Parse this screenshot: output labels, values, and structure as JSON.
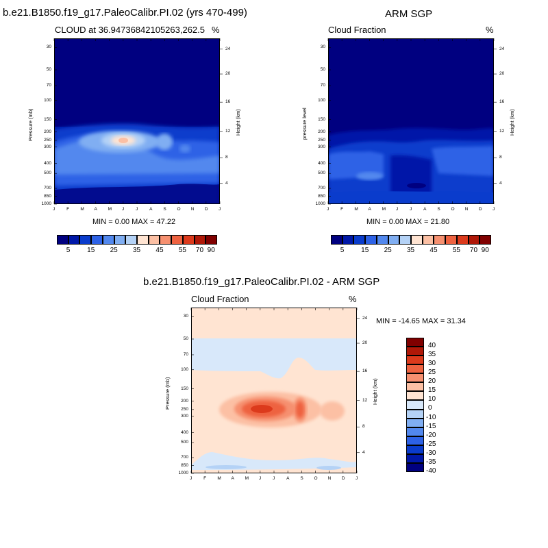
{
  "header": {
    "title_left": "b.e21.B1850.f19_g17.PaleoCalibr.PI.02 (yrs 470-499)",
    "title_right": "ARM SGP",
    "title_bottom": "b.e21.B1850.f19_g17.PaleoCalibr.PI.02 - ARM SGP"
  },
  "colors": {
    "blue_scale": [
      "#000080",
      "#0018a8",
      "#0a3ccc",
      "#2d62e6",
      "#5288ee",
      "#80aef2",
      "#b4d2f6",
      "#ffe4d2",
      "#fcc0a4",
      "#f69070",
      "#ee6240",
      "#dc3a1c",
      "#b01808",
      "#800000"
    ],
    "diff_scale": [
      "#000080",
      "#0018a8",
      "#0a3ccc",
      "#2d62e6",
      "#5288ee",
      "#80aef2",
      "#b4d2f6",
      "#d8e8fa",
      "#ffe4d2",
      "#fcc0a4",
      "#f69070",
      "#ee6240",
      "#dc3a1c",
      "#b01808",
      "#800000"
    ],
    "diff_bg_upper": "#ffe4d2",
    "diff_bg_band": "#d8e8fa"
  },
  "chart_data": [
    {
      "type": "heatmap",
      "name": "model-cloud",
      "subtitle_left": "CLOUD at 36.94736842105263,262.5",
      "unit": "%",
      "ylabel_left": "Pressure (mb)",
      "ylabel_right": "Height (km)",
      "x_ticks": [
        "J",
        "F",
        "M",
        "A",
        "M",
        "J",
        "J",
        "A",
        "S",
        "O",
        "N",
        "D",
        "J"
      ],
      "y_ticks_left": [
        "30",
        "50",
        "70",
        "100",
        "150",
        "200",
        "250",
        "300",
        "400",
        "500",
        "700",
        "850",
        "1000"
      ],
      "y_ticks_right": [
        "24",
        "20",
        "16",
        "12",
        "8",
        "4"
      ],
      "stats": "MIN =   0.00 MAX =  47.22",
      "min": 0.0,
      "max": 47.22,
      "features": [
        {
          "month": 5.0,
          "pressure": 240,
          "value": 47,
          "note": "high cloud maximum near June at 250 mb"
        },
        {
          "month": 7.7,
          "pressure": 250,
          "value": 30,
          "note": "secondary maximum in late summer"
        }
      ]
    },
    {
      "type": "heatmap",
      "name": "obs-cloud",
      "subtitle_left": "Cloud Fraction",
      "unit": "%",
      "ylabel_left": "pressure level",
      "ylabel_right": "Height (km)",
      "x_ticks": [
        "J",
        "F",
        "M",
        "A",
        "M",
        "J",
        "J",
        "A",
        "S",
        "O",
        "N",
        "D",
        "J"
      ],
      "y_ticks_left": [
        "30",
        "50",
        "70",
        "100",
        "150",
        "200",
        "250",
        "300",
        "400",
        "500",
        "700",
        "850",
        "1000"
      ],
      "y_ticks_right": [
        "24",
        "20",
        "16",
        "12",
        "8",
        "4"
      ],
      "stats": "MIN =  0.00 MAX =  21.80",
      "min": 0.0,
      "max": 21.8
    },
    {
      "type": "heatmap",
      "name": "difference",
      "subtitle_left": "Cloud Fraction",
      "unit": "%",
      "ylabel_left": "Pressure (mb)",
      "ylabel_right": "Height (km)",
      "x_ticks": [
        "J",
        "F",
        "M",
        "A",
        "M",
        "J",
        "J",
        "A",
        "S",
        "O",
        "N",
        "D",
        "J"
      ],
      "y_ticks_left": [
        "30",
        "50",
        "70",
        "100",
        "150",
        "200",
        "250",
        "300",
        "400",
        "500",
        "700",
        "850",
        "1000"
      ],
      "y_ticks_right": [
        "24",
        "20",
        "16",
        "12",
        "8",
        "4"
      ],
      "stats": "MIN = -14.65 MAX =  31.34",
      "min": -14.65,
      "max": 31.34,
      "features": [
        {
          "month": 5.0,
          "pressure": 240,
          "value": 31,
          "note": "positive bias maximum"
        },
        {
          "month": 8.0,
          "pressure": 250,
          "value": 25,
          "note": "secondary positive bias"
        },
        {
          "month": 4.0,
          "pressure": 75,
          "value": -3,
          "note": "weak negative band 50-100 mb"
        }
      ]
    }
  ],
  "colorbars": {
    "top_labels": [
      "5",
      "15",
      "25",
      "35",
      "45",
      "55",
      "70",
      "90"
    ],
    "diff_labels": [
      "40",
      "35",
      "30",
      "25",
      "20",
      "15",
      "10",
      "0",
      "-10",
      "-15",
      "-20",
      "-25",
      "-30",
      "-35",
      "-40"
    ]
  }
}
